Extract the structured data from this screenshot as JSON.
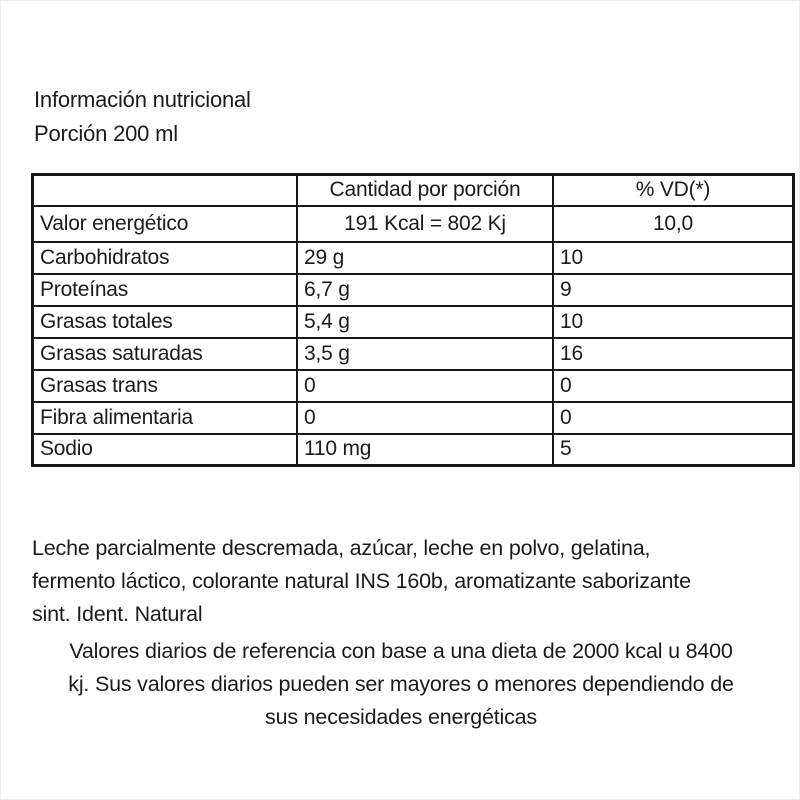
{
  "colors": {
    "background": "#ffffff",
    "border": "#171717",
    "text": "#1b1b1b"
  },
  "header": {
    "title": "Información nutricional",
    "portion": "Porción 200 ml"
  },
  "table": {
    "columns": [
      "",
      "Cantidad por porción",
      "% VD(*)"
    ],
    "energy_row": {
      "label": "Valor energético",
      "amount": "191 Kcal = 802 Kj",
      "vd": "10,0"
    },
    "rows": [
      {
        "label": "Carbohidratos",
        "amount": "29 g",
        "vd": "10"
      },
      {
        "label": "Proteínas",
        "amount": "6,7 g",
        "vd": "9"
      },
      {
        "label": "Grasas totales",
        "amount": "5,4 g",
        "vd": "10"
      },
      {
        "label": "Grasas saturadas",
        "amount": "3,5 g",
        "vd": "16"
      },
      {
        "label": "Grasas trans",
        "amount": "0",
        "vd": "0"
      },
      {
        "label": "Fibra alimentaria",
        "amount": "0",
        "vd": "0"
      },
      {
        "label": "Sodio",
        "amount": "110 mg",
        "vd": "5"
      }
    ]
  },
  "ingredients": {
    "lines": [
      "Leche parcialmente descremada, azúcar, leche en polvo, gelatina,",
      "fermento láctico, colorante natural INS 160b, aromatizante saborizante",
      "sint. Ident. Natural"
    ]
  },
  "reference_note": {
    "lines": [
      "Valores diarios de referencia con base a una dieta de 2000 kcal u 8400",
      "kj. Sus valores diarios pueden ser mayores o menores dependiendo de",
      "sus necesidades energéticas"
    ]
  }
}
